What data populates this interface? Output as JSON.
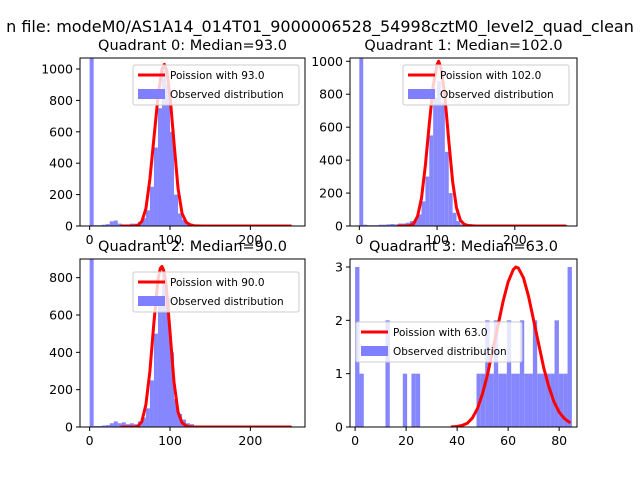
{
  "figure": {
    "suptitle": "n file: modeM0/AS1A14_014T01_9000006528_54998cztM0_level2_quad_clean"
  },
  "colors": {
    "poisson": "#ff0000",
    "observed": "#7f7fff",
    "text": "#000000",
    "axes": "#000000"
  },
  "chart_data": [
    {
      "type": "bar",
      "title": "Quadrant 0: Median=93.0",
      "xlim": [
        -12,
        268
      ],
      "ylim": [
        0,
        1070
      ],
      "xticks": [
        0,
        100,
        200
      ],
      "yticks": [
        0,
        200,
        400,
        600,
        800,
        1000
      ],
      "legend": {
        "position": "top-right",
        "line_label": "Poission with 93.0",
        "hist_label": "Observed distribution"
      },
      "hist": {
        "bin_width": 5,
        "bins": [
          [
            0,
            1070
          ],
          [
            5,
            5
          ],
          [
            10,
            5
          ],
          [
            15,
            8
          ],
          [
            20,
            12
          ],
          [
            25,
            30
          ],
          [
            30,
            35
          ],
          [
            35,
            15
          ],
          [
            40,
            8
          ],
          [
            45,
            10
          ],
          [
            50,
            15
          ],
          [
            55,
            15
          ],
          [
            60,
            25
          ],
          [
            65,
            50
          ],
          [
            70,
            100
          ],
          [
            75,
            250
          ],
          [
            80,
            500
          ],
          [
            85,
            750
          ],
          [
            90,
            1000
          ],
          [
            95,
            900
          ],
          [
            100,
            600
          ],
          [
            105,
            200
          ],
          [
            110,
            80
          ],
          [
            115,
            40
          ],
          [
            120,
            15
          ],
          [
            125,
            5
          ],
          [
            130,
            3
          ]
        ]
      },
      "poisson": {
        "x": [
          40,
          50,
          55,
          60,
          65,
          70,
          75,
          80,
          85,
          90,
          93,
          96,
          100,
          105,
          110,
          115,
          120,
          125,
          130,
          140,
          150,
          160,
          180,
          200,
          220,
          250
        ],
        "y": [
          0,
          0,
          0,
          3,
          30,
          110,
          300,
          560,
          820,
          1000,
          1030,
          990,
          830,
          530,
          240,
          80,
          25,
          8,
          2,
          0,
          0,
          0,
          0,
          0,
          0,
          0
        ]
      }
    },
    {
      "type": "bar",
      "title": "Quadrant 1: Median=102.0",
      "xlim": [
        -12,
        280
      ],
      "ylim": [
        0,
        1020
      ],
      "xticks": [
        0,
        100,
        200
      ],
      "yticks": [
        0,
        200,
        400,
        600,
        800,
        1000
      ],
      "legend": {
        "position": "top-right",
        "line_label": "Poission with 102.0",
        "hist_label": "Observed distribution"
      },
      "hist": {
        "bin_width": 5,
        "bins": [
          [
            0,
            1020
          ],
          [
            5,
            8
          ],
          [
            10,
            5
          ],
          [
            15,
            5
          ],
          [
            20,
            5
          ],
          [
            25,
            8
          ],
          [
            30,
            8
          ],
          [
            35,
            10
          ],
          [
            40,
            12
          ],
          [
            45,
            10
          ],
          [
            50,
            15
          ],
          [
            55,
            15
          ],
          [
            60,
            20
          ],
          [
            65,
            30
          ],
          [
            70,
            40
          ],
          [
            75,
            70
          ],
          [
            80,
            150
          ],
          [
            85,
            300
          ],
          [
            90,
            550
          ],
          [
            95,
            780
          ],
          [
            100,
            880
          ],
          [
            105,
            750
          ],
          [
            110,
            450
          ],
          [
            115,
            200
          ],
          [
            120,
            80
          ],
          [
            125,
            30
          ],
          [
            130,
            10
          ],
          [
            135,
            5
          ]
        ]
      },
      "poisson": {
        "x": [
          50,
          60,
          65,
          70,
          75,
          80,
          85,
          90,
          95,
          100,
          102,
          105,
          110,
          115,
          120,
          125,
          130,
          135,
          140,
          150,
          160,
          180,
          200,
          230,
          265
        ],
        "y": [
          0,
          0,
          2,
          15,
          60,
          170,
          370,
          620,
          850,
          980,
          1000,
          960,
          790,
          520,
          270,
          110,
          35,
          10,
          3,
          0,
          0,
          0,
          0,
          0,
          0
        ]
      }
    },
    {
      "type": "bar",
      "title": "Quadrant 2: Median=90.0",
      "xlim": [
        -12,
        268
      ],
      "ylim": [
        0,
        900
      ],
      "xticks": [
        0,
        100,
        200
      ],
      "yticks": [
        0,
        200,
        400,
        600,
        800
      ],
      "legend": {
        "position": "top-right",
        "line_label": "Poission with 90.0",
        "hist_label": "Observed distribution"
      },
      "hist": {
        "bin_width": 5,
        "bins": [
          [
            0,
            900
          ],
          [
            5,
            5
          ],
          [
            10,
            5
          ],
          [
            15,
            8
          ],
          [
            20,
            10
          ],
          [
            25,
            20
          ],
          [
            30,
            30
          ],
          [
            35,
            20
          ],
          [
            40,
            25
          ],
          [
            45,
            15
          ],
          [
            50,
            20
          ],
          [
            55,
            15
          ],
          [
            60,
            30
          ],
          [
            65,
            50
          ],
          [
            70,
            100
          ],
          [
            75,
            250
          ],
          [
            80,
            500
          ],
          [
            85,
            700
          ],
          [
            90,
            820
          ],
          [
            95,
            700
          ],
          [
            100,
            400
          ],
          [
            105,
            150
          ],
          [
            110,
            70
          ],
          [
            115,
            40
          ],
          [
            120,
            20
          ],
          [
            125,
            15
          ],
          [
            130,
            8
          ],
          [
            135,
            5
          ]
        ]
      },
      "poisson": {
        "x": [
          40,
          50,
          55,
          60,
          65,
          70,
          75,
          80,
          85,
          88,
          90,
          92,
          95,
          100,
          105,
          110,
          115,
          120,
          125,
          130,
          140,
          150,
          170,
          200,
          230,
          250
        ],
        "y": [
          0,
          0,
          0,
          3,
          30,
          120,
          300,
          560,
          790,
          850,
          860,
          840,
          770,
          510,
          240,
          80,
          22,
          6,
          1,
          0,
          0,
          0,
          0,
          0,
          0,
          0
        ]
      }
    },
    {
      "type": "bar",
      "title": "Quadrant 3: Median=63.0",
      "xlim": [
        -2,
        87
      ],
      "ylim": [
        0,
        3.15
      ],
      "xticks": [
        0,
        20,
        40,
        60,
        80
      ],
      "yticks": [
        0,
        1,
        2,
        3
      ],
      "legend": {
        "position": "center-left",
        "line_label": "Poission with 63.0",
        "hist_label": "Observed distribution"
      },
      "hist": {
        "bin_width": 1.7,
        "bins": [
          [
            0,
            3
          ],
          [
            1.7,
            1
          ],
          [
            11.9,
            2
          ],
          [
            18.7,
            1
          ],
          [
            22.1,
            1
          ],
          [
            23.8,
            1
          ],
          [
            47.6,
            1
          ],
          [
            49.3,
            1
          ],
          [
            51,
            2
          ],
          [
            52.7,
            1
          ],
          [
            54.4,
            2
          ],
          [
            56.1,
            1
          ],
          [
            57.8,
            1
          ],
          [
            59.5,
            2
          ],
          [
            61.2,
            1
          ],
          [
            62.9,
            1
          ],
          [
            64.6,
            2
          ],
          [
            66.3,
            1
          ],
          [
            68,
            1
          ],
          [
            69.7,
            2
          ],
          [
            71.4,
            1
          ],
          [
            73.1,
            1
          ],
          [
            74.8,
            1
          ],
          [
            76.5,
            1
          ],
          [
            78.2,
            2
          ],
          [
            79.9,
            1
          ],
          [
            81.6,
            1
          ],
          [
            83.3,
            3
          ]
        ]
      },
      "poisson": {
        "x": [
          38,
          40,
          42,
          44,
          46,
          48,
          50,
          52,
          54,
          56,
          58,
          60,
          62,
          63,
          64,
          66,
          68,
          70,
          72,
          74,
          76,
          78,
          80,
          82,
          84
        ],
        "y": [
          0.002,
          0.01,
          0.03,
          0.07,
          0.17,
          0.35,
          0.63,
          1.0,
          1.45,
          1.9,
          2.35,
          2.72,
          2.95,
          3.0,
          2.98,
          2.8,
          2.45,
          2.0,
          1.55,
          1.1,
          0.75,
          0.47,
          0.28,
          0.16,
          0.09
        ]
      }
    }
  ]
}
